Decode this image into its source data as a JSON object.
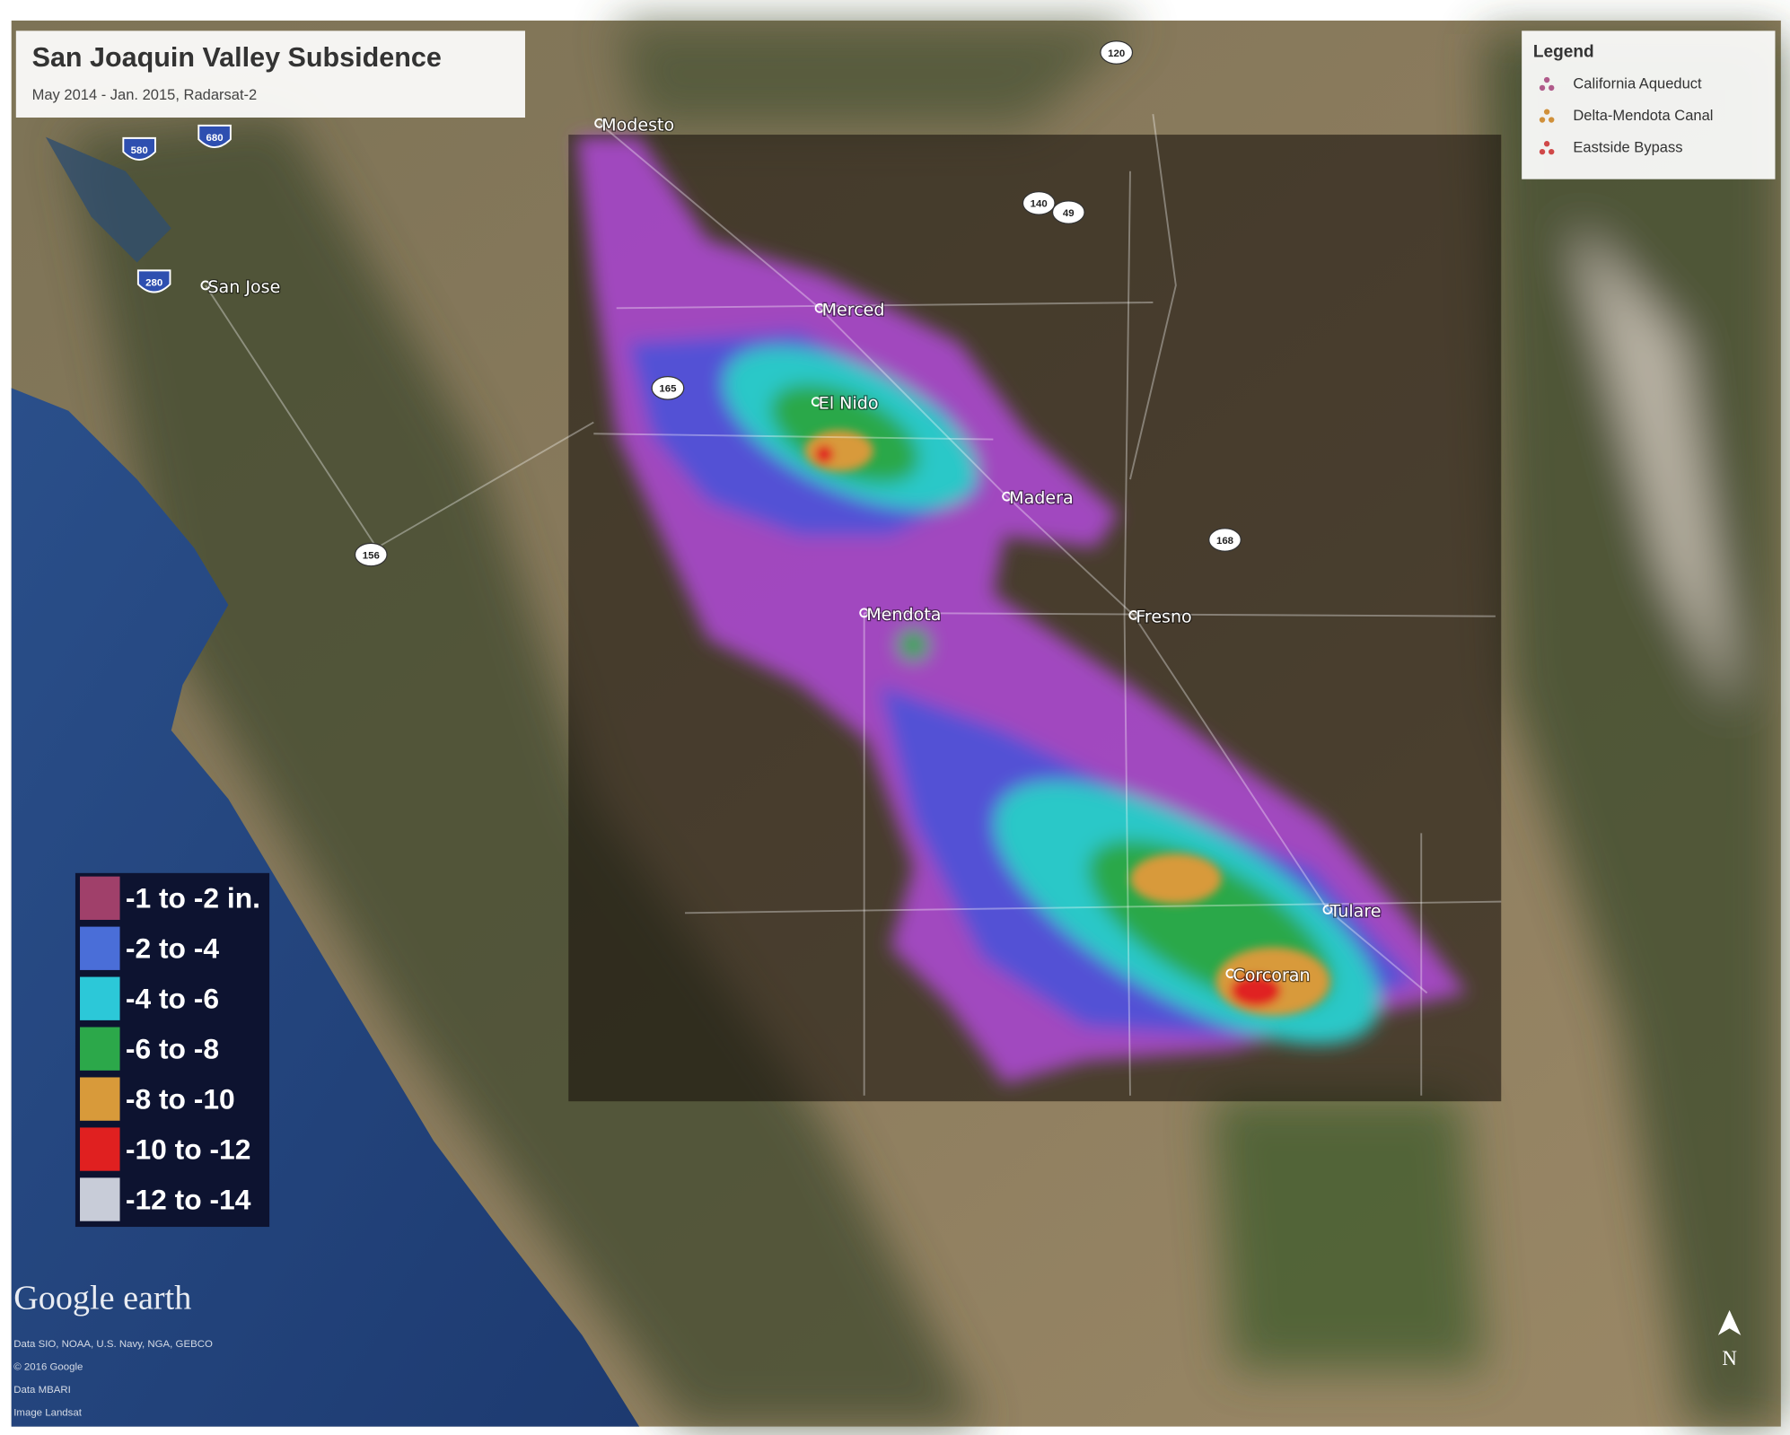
{
  "header": {
    "title": "San Joaquin Valley Subsidence",
    "subtitle": "May 2014 - Jan. 2015, Radarsat-2"
  },
  "legend": {
    "title": "Legend",
    "items": [
      {
        "label": "California Aqueduct",
        "color": "#b05a8a"
      },
      {
        "label": "Delta-Mendota Canal",
        "color": "#d0903a"
      },
      {
        "label": "Eastside Bypass",
        "color": "#d04848"
      }
    ]
  },
  "color_scale": {
    "items": [
      {
        "label": "-1 to -2 in.",
        "color": "#a0406a"
      },
      {
        "label": "-2 to -4",
        "color": "#4a6ed8"
      },
      {
        "label": "-4 to -6",
        "color": "#2cc8d8"
      },
      {
        "label": "-6 to -8",
        "color": "#2ca84a"
      },
      {
        "label": "-8 to -10",
        "color": "#d89a3a"
      },
      {
        "label": "-10 to -12",
        "color": "#e02020"
      },
      {
        "label": "-12 to -14",
        "color": "#c8ccd8"
      }
    ]
  },
  "places": [
    "Modesto",
    "San Jose",
    "Merced",
    "El Nido",
    "Madera",
    "Mendota",
    "Fresno",
    "Tulare",
    "Corcoran"
  ],
  "highways": [
    "120",
    "580",
    "680",
    "280",
    "140",
    "49",
    "165",
    "156",
    "168"
  ],
  "branding": "Google earth",
  "attribution": [
    "Data SIO, NOAA, U.S. Navy, NGA, GEBCO",
    "© 2016 Google",
    "Data MBARI",
    "Image Landsat"
  ],
  "north": "N"
}
